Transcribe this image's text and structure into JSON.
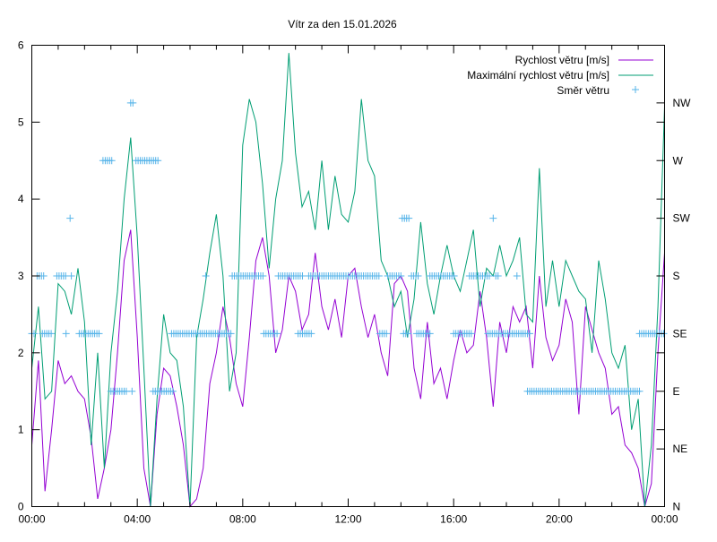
{
  "chart_data": {
    "type": "line",
    "title": "Vítr za den 15.01.2026",
    "xlabel": "",
    "ylabel": "",
    "xlim": [
      0,
      24
    ],
    "ylim": [
      0,
      6
    ],
    "y2lim": [
      0,
      360
    ],
    "x_unit": "hours",
    "x_ticks": [
      "00:00",
      "04:00",
      "08:00",
      "12:00",
      "16:00",
      "20:00",
      "00:00"
    ],
    "y_ticks": [
      "0",
      "1",
      "2",
      "3",
      "4",
      "5",
      "6"
    ],
    "y2_ticks": [
      "N",
      "NE",
      "E",
      "SE",
      "S",
      "SW",
      "W",
      "NW"
    ],
    "legend_position": "top-right",
    "grid": false,
    "x_step_hours": 0.25,
    "series": [
      {
        "name": "Rychlost větru [m/s]",
        "color": "#9400d3",
        "values": [
          0.8,
          1.9,
          0.2,
          1.0,
          1.9,
          1.6,
          1.7,
          1.5,
          1.4,
          0.9,
          0.1,
          0.5,
          1.0,
          2.0,
          3.2,
          3.6,
          2.2,
          0.5,
          0.0,
          1.2,
          1.8,
          1.7,
          1.3,
          0.8,
          0.0,
          0.1,
          0.5,
          1.6,
          2.0,
          2.6,
          2.2,
          1.6,
          1.3,
          2.2,
          3.2,
          3.5,
          3.0,
          2.0,
          2.3,
          3.0,
          2.8,
          2.3,
          2.5,
          3.3,
          2.6,
          2.3,
          2.7,
          2.2,
          3.0,
          3.1,
          2.6,
          2.2,
          2.5,
          2.0,
          1.7,
          2.9,
          3.0,
          2.8,
          1.8,
          1.4,
          2.4,
          1.6,
          1.8,
          1.4,
          1.9,
          2.3,
          2.0,
          2.1,
          2.8,
          2.2,
          1.3,
          2.4,
          2.0,
          2.6,
          2.4,
          2.6,
          1.8,
          3.0,
          2.2,
          1.9,
          2.1,
          2.7,
          2.4,
          1.2,
          2.6,
          2.3,
          2.0,
          1.8,
          1.2,
          1.3,
          0.8,
          0.7,
          0.5,
          0.0,
          0.3,
          2.0,
          3.3
        ]
      },
      {
        "name": "Maximální rychlost větru [m/s]",
        "color": "#009e73",
        "values": [
          1.8,
          2.6,
          1.4,
          1.5,
          2.9,
          2.8,
          2.5,
          3.1,
          2.4,
          0.8,
          2.0,
          0.5,
          2.0,
          2.8,
          4.0,
          4.8,
          3.5,
          1.8,
          0.0,
          1.4,
          2.5,
          2.0,
          1.9,
          1.3,
          0.0,
          2.2,
          2.7,
          3.3,
          3.8,
          3.0,
          1.5,
          2.0,
          4.7,
          5.3,
          5.0,
          4.2,
          3.1,
          4.0,
          4.5,
          5.9,
          4.6,
          3.9,
          4.1,
          3.6,
          4.5,
          3.6,
          4.3,
          3.8,
          3.7,
          4.1,
          5.3,
          4.5,
          4.3,
          3.2,
          3.0,
          2.6,
          2.8,
          2.2,
          2.7,
          3.7,
          2.9,
          2.5,
          3.0,
          3.4,
          3.0,
          2.8,
          3.2,
          3.6,
          2.6,
          3.1,
          3.0,
          3.4,
          3.0,
          3.2,
          3.5,
          2.5,
          2.4,
          4.4,
          2.6,
          3.2,
          2.6,
          3.2,
          3.0,
          2.8,
          2.7,
          2.0,
          3.2,
          2.7,
          2.0,
          1.8,
          2.1,
          1.0,
          1.4,
          0.0,
          0.8,
          2.6,
          5.2
        ]
      },
      {
        "name": "Směr větru",
        "color": "#56b4e9",
        "axis": "y2",
        "marker": "+",
        "step_hours": 0.0833,
        "segments": [
          [
            0.0,
            0.1,
            135
          ],
          [
            0.2,
            0.45,
            180
          ],
          [
            0.4,
            0.75,
            135
          ],
          [
            0.95,
            1.3,
            180
          ],
          [
            1.3,
            1.35,
            135
          ],
          [
            1.45,
            1.45,
            225
          ],
          [
            1.5,
            1.5,
            180
          ],
          [
            1.8,
            2.6,
            135
          ],
          [
            2.7,
            3.1,
            270
          ],
          [
            3.0,
            3.6,
            90
          ],
          [
            3.75,
            3.85,
            315
          ],
          [
            3.8,
            3.8,
            90
          ],
          [
            3.95,
            4.8,
            270
          ],
          [
            4.6,
            5.4,
            90
          ],
          [
            5.3,
            7.6,
            135
          ],
          [
            6.6,
            6.6,
            180
          ],
          [
            7.6,
            8.8,
            180
          ],
          [
            8.8,
            9.35,
            135
          ],
          [
            9.35,
            10.3,
            180
          ],
          [
            10.1,
            10.6,
            135
          ],
          [
            10.5,
            13.2,
            180
          ],
          [
            13.2,
            13.5,
            135
          ],
          [
            13.5,
            14.0,
            180
          ],
          [
            14.05,
            14.35,
            225
          ],
          [
            14.1,
            14.3,
            135
          ],
          [
            14.4,
            14.7,
            180
          ],
          [
            14.6,
            15.1,
            135
          ],
          [
            15.1,
            16.05,
            180
          ],
          [
            16.0,
            16.7,
            135
          ],
          [
            16.6,
            17.35,
            180
          ],
          [
            17.5,
            17.5,
            225
          ],
          [
            17.6,
            17.7,
            180
          ],
          [
            18.4,
            18.4,
            180
          ],
          [
            17.3,
            18.9,
            135
          ],
          [
            18.8,
            23.05,
            90
          ],
          [
            23.05,
            24.0,
            135
          ]
        ]
      }
    ]
  }
}
